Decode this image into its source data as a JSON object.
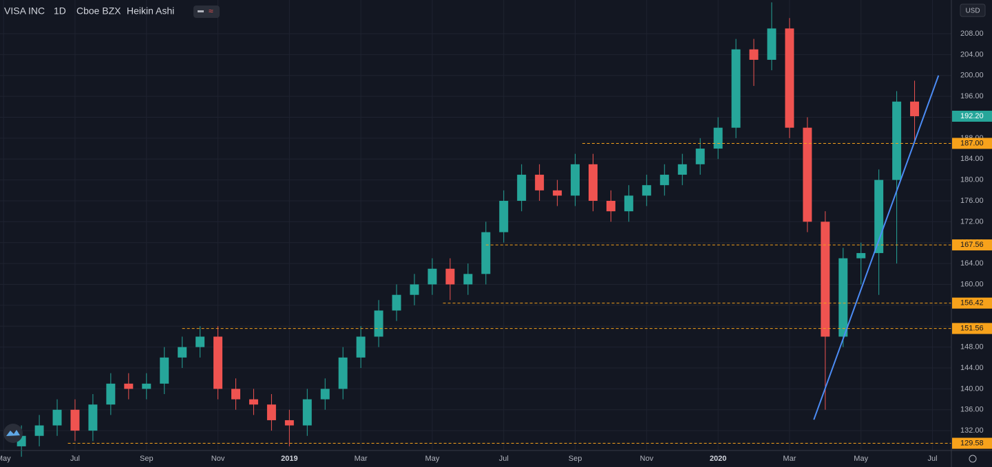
{
  "header": {
    "symbol": "VISA INC",
    "interval": "1D",
    "exchange": "Cboe BZX",
    "style": "Heikin Ashi",
    "currency": "USD"
  },
  "chart_data": {
    "type": "candlestick",
    "x": [
      0.5,
      1,
      1.5,
      2,
      2.5,
      3,
      3.5,
      4,
      4.5,
      5,
      5.5,
      6,
      6.5,
      7,
      7.5,
      8,
      8.5,
      9,
      9.5,
      10,
      10.5,
      11,
      11.5,
      12,
      12.5,
      13,
      13.5,
      14,
      14.5,
      15,
      15.5,
      16,
      16.5,
      17,
      17.5,
      18,
      18.5,
      19,
      19.5,
      20,
      20.5,
      21,
      21.5,
      22,
      22.5,
      23,
      23.5,
      24,
      24.5,
      25,
      25.5
    ],
    "open": [
      129,
      131,
      133,
      136,
      132,
      137,
      141,
      140,
      141,
      146,
      148,
      150,
      140,
      138,
      137,
      134,
      133,
      138,
      140,
      146,
      150,
      155,
      158,
      160,
      163,
      160,
      162,
      170,
      176,
      181,
      178,
      177,
      183,
      176,
      174,
      177,
      179,
      181,
      183,
      186,
      190,
      205,
      203,
      209,
      190,
      172,
      150,
      165,
      166,
      180,
      195
    ],
    "high": [
      133,
      135,
      138,
      138,
      139,
      143,
      143,
      143,
      148,
      150,
      152,
      152,
      142,
      140,
      139,
      136,
      140,
      142,
      148,
      152,
      157,
      160,
      162,
      165,
      165,
      164,
      172,
      178,
      183,
      183,
      180,
      185,
      185,
      178,
      179,
      181,
      183,
      185,
      188,
      192,
      207,
      207,
      214,
      211,
      192,
      174,
      167,
      168,
      182,
      197,
      199
    ],
    "low": [
      127,
      129,
      131,
      130,
      130,
      135,
      138,
      138,
      139,
      144,
      146,
      138,
      136,
      135,
      132,
      129,
      131,
      136,
      138,
      144,
      148,
      153,
      156,
      158,
      157,
      158,
      160,
      168,
      174,
      176,
      175,
      175,
      174,
      172,
      172,
      175,
      177,
      179,
      181,
      184,
      188,
      198,
      201,
      188,
      170,
      136,
      148,
      160,
      158,
      164,
      187
    ],
    "close": [
      131,
      133,
      136,
      132,
      137,
      141,
      140,
      141,
      146,
      148,
      150,
      140,
      138,
      137,
      134,
      133,
      138,
      140,
      146,
      150,
      155,
      158,
      160,
      163,
      160,
      162,
      170,
      176,
      181,
      178,
      177,
      183,
      176,
      174,
      177,
      179,
      181,
      183,
      186,
      190,
      205,
      203,
      209,
      190,
      172,
      150,
      165,
      166,
      180,
      195,
      192.2
    ],
    "up_color": "#26a69a",
    "down_color": "#ef5350",
    "xlim": [
      -0.1,
      26.53
    ],
    "xticks": [
      {
        "value": 0,
        "label": "May"
      },
      {
        "value": 2,
        "label": "Jul"
      },
      {
        "value": 4,
        "label": "Sep"
      },
      {
        "value": 6,
        "label": "Nov"
      },
      {
        "value": 8,
        "label": "2019"
      },
      {
        "value": 10,
        "label": "Mar"
      },
      {
        "value": 12,
        "label": "May"
      },
      {
        "value": 14,
        "label": "Jul"
      },
      {
        "value": 16,
        "label": "Sep"
      },
      {
        "value": 18,
        "label": "Nov"
      },
      {
        "value": 20,
        "label": "2020"
      },
      {
        "value": 22,
        "label": "Mar"
      },
      {
        "value": 24,
        "label": "May"
      },
      {
        "value": 26,
        "label": "Jul"
      }
    ],
    "ylim": [
      128.2,
      214.45
    ],
    "yticks": [
      {
        "value": 132,
        "label": "132.00"
      },
      {
        "value": 136,
        "label": "136.00"
      },
      {
        "value": 140,
        "label": "140.00"
      },
      {
        "value": 144,
        "label": "144.00"
      },
      {
        "value": 148,
        "label": "148.00"
      },
      {
        "value": 152,
        "label": "152.00"
      },
      {
        "value": 156,
        "label": "156.00"
      },
      {
        "value": 160,
        "label": "160.00"
      },
      {
        "value": 164,
        "label": "164.00"
      },
      {
        "value": 168,
        "label": "168.00"
      },
      {
        "value": 172,
        "label": "172.00"
      },
      {
        "value": 176,
        "label": "176.00"
      },
      {
        "value": 180,
        "label": "180.00"
      },
      {
        "value": 184,
        "label": "184.00"
      },
      {
        "value": 188,
        "label": "188.00"
      },
      {
        "value": 192,
        "label": "192.00"
      },
      {
        "value": 196,
        "label": "196.00"
      },
      {
        "value": 200,
        "label": "200.00"
      },
      {
        "value": 204,
        "label": "204.00"
      },
      {
        "value": 208,
        "label": "208.00"
      }
    ],
    "grid": true,
    "levels": [
      {
        "value": 187,
        "label": "187.00",
        "x_start": 16.2
      },
      {
        "value": 167.56,
        "label": "167.56",
        "x_start": 13.5
      },
      {
        "value": 156.42,
        "label": "156.42",
        "x_start": 12.3
      },
      {
        "value": 151.56,
        "label": "151.56",
        "x_start": 5.0
      },
      {
        "value": 129.58,
        "label": "129.58",
        "x_start": 1.8
      }
    ],
    "level_color": "#f7a21b",
    "last_price": {
      "value": 192.2,
      "label": "192.20",
      "color": "#26a69a"
    },
    "trend_line": {
      "x": [
        22.68,
        26.17
      ],
      "y": [
        134.1,
        200.0
      ],
      "color": "#4c8cf5"
    }
  }
}
